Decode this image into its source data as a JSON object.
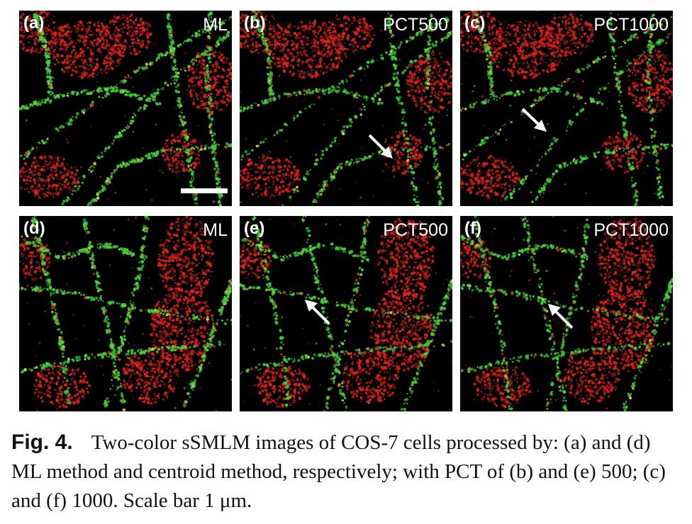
{
  "panels": [
    {
      "letter": "(a)",
      "method": "ML",
      "scalebar": true,
      "arrow": null
    },
    {
      "letter": "(b)",
      "method": "PCT500",
      "scalebar": false,
      "arrow": "down-right"
    },
    {
      "letter": "(c)",
      "method": "PCT1000",
      "scalebar": false,
      "arrow": "down-right"
    },
    {
      "letter": "(d)",
      "method": "ML",
      "scalebar": false,
      "arrow": null
    },
    {
      "letter": "(e)",
      "method": "PCT500",
      "scalebar": false,
      "arrow": "up-left"
    },
    {
      "letter": "(f)",
      "method": "PCT1000",
      "scalebar": false,
      "arrow": "up-left"
    }
  ],
  "caption": {
    "label": "Fig. 4.",
    "text": "Two-color sSMLM images of COS-7 cells processed by: (a) and (d) ML method and centroid method, respectively; with PCT of (b) and (e) 500; (c) and (f) 1000. Scale bar 1 μm."
  },
  "colors": {
    "background": "#000000",
    "channel_green": "#3fd13a",
    "channel_red": "#e0241c",
    "label": "#ffffff"
  }
}
